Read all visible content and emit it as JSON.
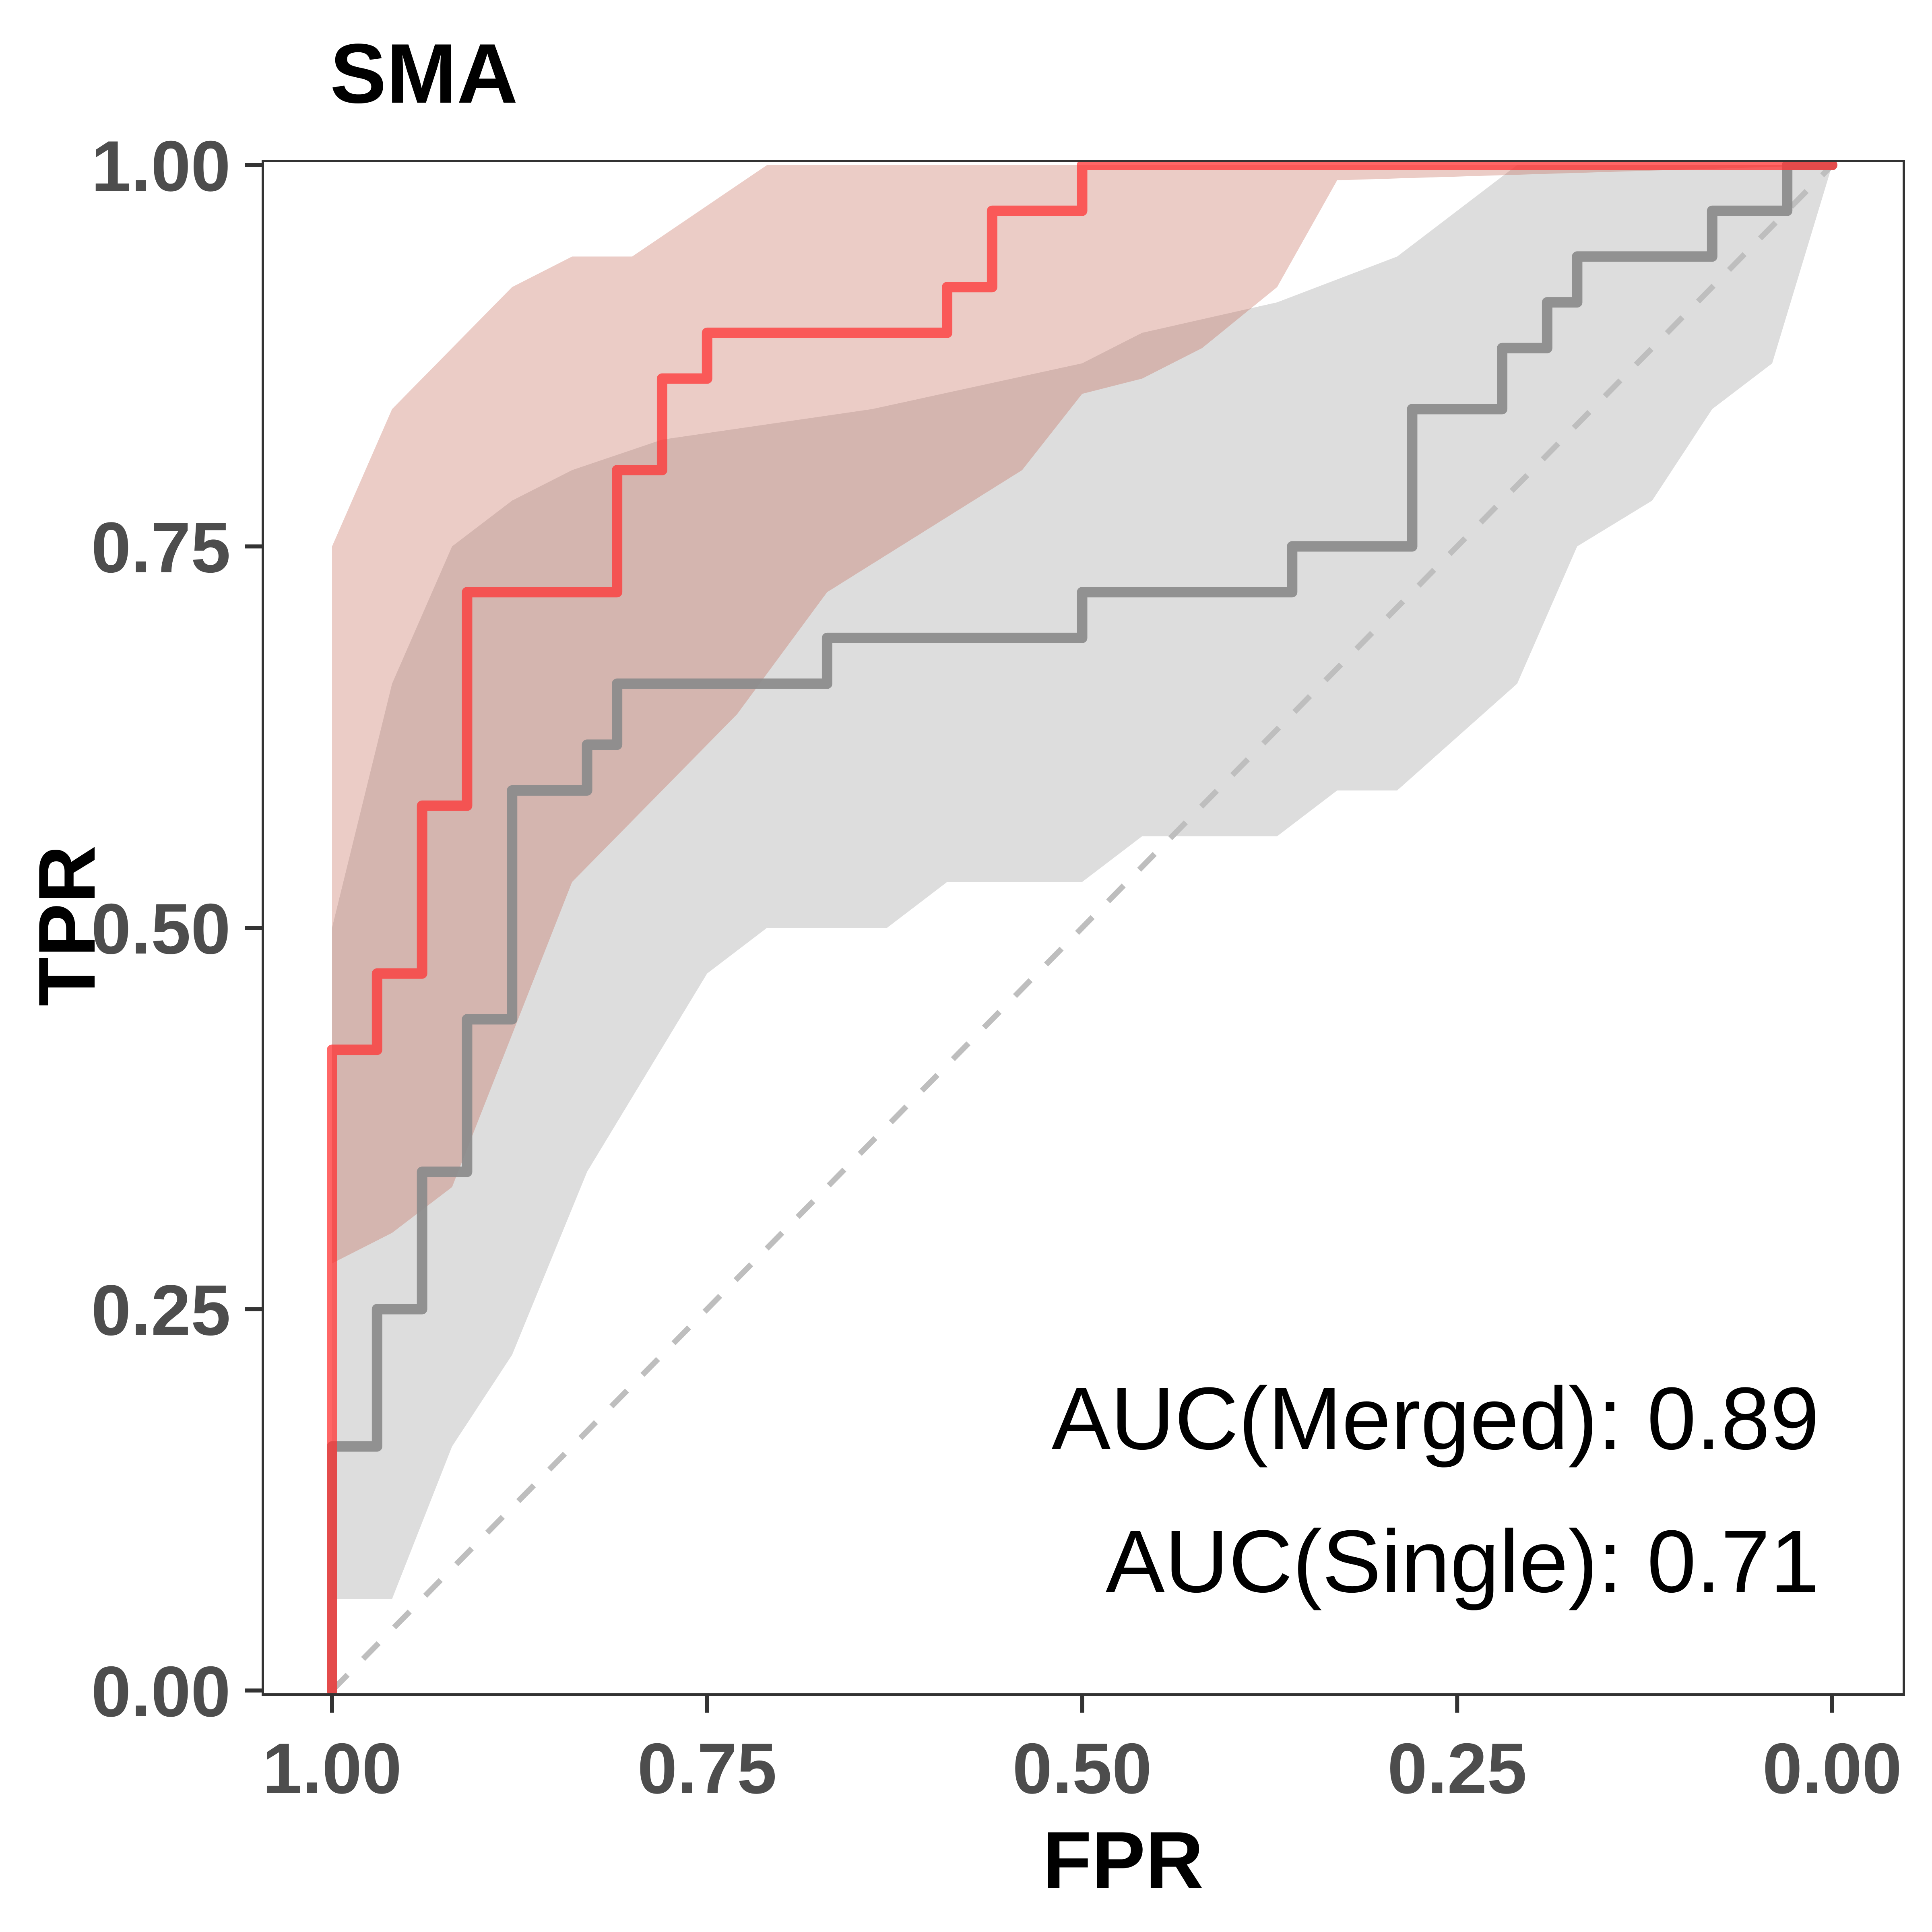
{
  "chart_data": {
    "type": "line",
    "title": "SMA",
    "xlabel": "FPR",
    "ylabel": "TPR",
    "x_reversed": true,
    "xlim": [
      1.0,
      0.0
    ],
    "ylim": [
      0.0,
      1.0
    ],
    "x_ticks": [
      "1.00",
      "0.75",
      "0.50",
      "0.25",
      "0.00"
    ],
    "x_tick_values": [
      1.0,
      0.75,
      0.5,
      0.25,
      0.0
    ],
    "y_ticks": [
      "0.00",
      "0.25",
      "0.50",
      "0.75",
      "1.00"
    ],
    "y_tick_values": [
      0.0,
      0.25,
      0.5,
      0.75,
      1.0
    ],
    "grid": false,
    "legend": "none",
    "reference_line": {
      "x": [
        1.0,
        0.0
      ],
      "y": [
        0.0,
        1.0
      ],
      "style": "dashed",
      "color": "#bebebe"
    },
    "annotations": [
      "AUC(Merged): 0.89",
      "AUC(Single): 0.71"
    ],
    "series": [
      {
        "color": "#ff3333",
        "band_color": "#c0604f",
        "x": [
          1.0,
          1.0,
          0.97,
          0.97,
          0.94,
          0.94,
          0.91,
          0.91,
          0.81,
          0.81,
          0.78,
          0.78,
          0.75,
          0.75,
          0.72,
          0.72,
          0.59,
          0.59,
          0.56,
          0.56,
          0.5,
          0.5,
          0.0
        ],
        "y": [
          0.0,
          0.42,
          0.42,
          0.47,
          0.47,
          0.58,
          0.58,
          0.72,
          0.72,
          0.8,
          0.8,
          0.86,
          0.86,
          0.89,
          0.89,
          0.89,
          0.89,
          0.92,
          0.92,
          0.97,
          0.97,
          1.0,
          1.0
        ],
        "band_x": [
          1.0,
          0.96,
          0.88,
          0.84,
          0.8,
          0.71,
          0.33,
          0.0
        ],
        "band_upper": [
          0.75,
          0.84,
          0.92,
          0.94,
          0.94,
          1.0,
          1.0,
          1.0
        ],
        "band_lower_x": [
          1.0,
          0.96,
          0.92,
          0.84,
          0.73,
          0.67,
          0.54,
          0.5,
          0.46,
          0.42,
          0.37,
          0.33,
          0.0
        ],
        "band_lower": [
          0.28,
          0.3,
          0.33,
          0.53,
          0.64,
          0.72,
          0.8,
          0.85,
          0.86,
          0.88,
          0.92,
          0.99,
          1.0
        ]
      },
      {
        "color": "#8c8c8c",
        "band_color": "#b4b4b4",
        "x": [
          1.0,
          1.0,
          0.97,
          0.97,
          0.94,
          0.94,
          0.91,
          0.91,
          0.88,
          0.88,
          0.83,
          0.83,
          0.81,
          0.81,
          0.67,
          0.67,
          0.5,
          0.5,
          0.36,
          0.36,
          0.28,
          0.28,
          0.22,
          0.22,
          0.19,
          0.19,
          0.17,
          0.17,
          0.08,
          0.08,
          0.03,
          0.03,
          0.0
        ],
        "y": [
          0.0,
          0.16,
          0.16,
          0.25,
          0.25,
          0.34,
          0.34,
          0.44,
          0.44,
          0.59,
          0.59,
          0.62,
          0.62,
          0.66,
          0.66,
          0.69,
          0.69,
          0.72,
          0.72,
          0.75,
          0.75,
          0.84,
          0.84,
          0.88,
          0.88,
          0.91,
          0.91,
          0.94,
          0.94,
          0.97,
          0.97,
          1.0,
          1.0
        ],
        "band_x": [
          1.0,
          0.96,
          0.92,
          0.88,
          0.84,
          0.78,
          0.64,
          0.5,
          0.46,
          0.37,
          0.29,
          0.25,
          0.21,
          0.0
        ],
        "band_upper": [
          0.5,
          0.66,
          0.75,
          0.78,
          0.8,
          0.82,
          0.84,
          0.87,
          0.89,
          0.91,
          0.94,
          0.97,
          1.0,
          1.0
        ],
        "band_lower_x": [
          1.0,
          0.96,
          0.92,
          0.88,
          0.83,
          0.75,
          0.71,
          0.63,
          0.59,
          0.5,
          0.46,
          0.37,
          0.33,
          0.29,
          0.21,
          0.17,
          0.12,
          0.08,
          0.04,
          0.0
        ],
        "band_lower": [
          0.06,
          0.06,
          0.16,
          0.22,
          0.34,
          0.47,
          0.5,
          0.5,
          0.53,
          0.53,
          0.56,
          0.56,
          0.59,
          0.59,
          0.66,
          0.75,
          0.78,
          0.84,
          0.87,
          1.0
        ]
      }
    ]
  }
}
